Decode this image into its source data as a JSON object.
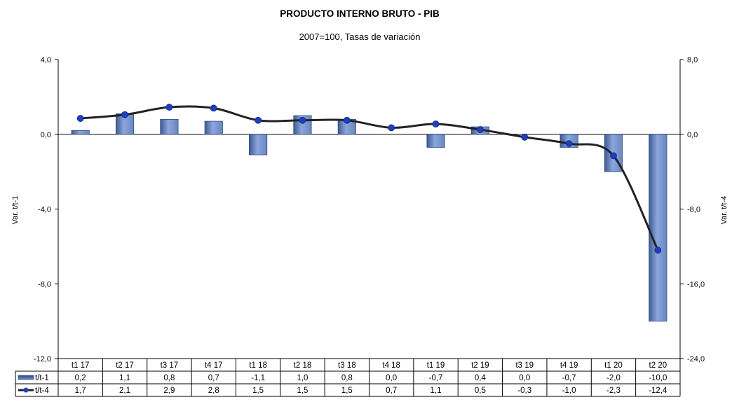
{
  "chart_data": {
    "type": "bar",
    "title": "PRODUCTO INTERNO BRUTO - PIB",
    "subtitle": "2007=100, Tasas de variación",
    "categories": [
      "t1 17",
      "t2 17",
      "t3 17",
      "t4 17",
      "t1 18",
      "t2 18",
      "t3 18",
      "t4 18",
      "t1 19",
      "t2 19",
      "t3 19",
      "t4 19",
      "t1 20",
      "t2 20"
    ],
    "series": [
      {
        "name": "t/t-1",
        "kind": "bar",
        "axis": "left",
        "color": "#7f98cc",
        "values": [
          0.2,
          1.1,
          0.8,
          0.7,
          -1.1,
          1.0,
          0.8,
          0.0,
          -0.7,
          0.4,
          0.0,
          -0.7,
          -2.0,
          -10.0
        ],
        "labels": [
          "0,2",
          "1,1",
          "0,8",
          "0,7",
          "-1,1",
          "1,0",
          "0,8",
          "0,0",
          "-0,7",
          "0,4",
          "0,0",
          "-0,7",
          "-2,0",
          "-10,0"
        ]
      },
      {
        "name": "t/t-4",
        "kind": "line",
        "axis": "right",
        "color": "#222222",
        "marker_color": "#1f3fbf",
        "values": [
          1.7,
          2.1,
          2.9,
          2.8,
          1.5,
          1.5,
          1.5,
          0.7,
          1.1,
          0.5,
          -0.3,
          -1.0,
          -2.3,
          -12.4
        ],
        "labels": [
          "1,7",
          "2,1",
          "2,9",
          "2,8",
          "1,5",
          "1,5",
          "1,5",
          "0,7",
          "1,1",
          "0,5",
          "-0,3",
          "-1,0",
          "-2,3",
          "-12,4"
        ]
      }
    ],
    "ylabel_left": "Var. t/t-1",
    "ylabel_right": "Var. t/t-4",
    "ylim_left": [
      -12,
      4
    ],
    "ylim_right": [
      -24,
      8
    ],
    "yticks_left": [
      4,
      0,
      -4,
      -8,
      -12
    ],
    "yticks_right": [
      8,
      0,
      -8,
      -16,
      -24
    ],
    "ytick_labels_left": [
      "4,0",
      "0,0",
      "-4,0",
      "-8,0",
      "-12,0"
    ],
    "ytick_labels_right": [
      "8,0",
      "0,0",
      "-8,0",
      "-16,0",
      "-24,0"
    ],
    "grid": false,
    "legend": "data-table"
  }
}
